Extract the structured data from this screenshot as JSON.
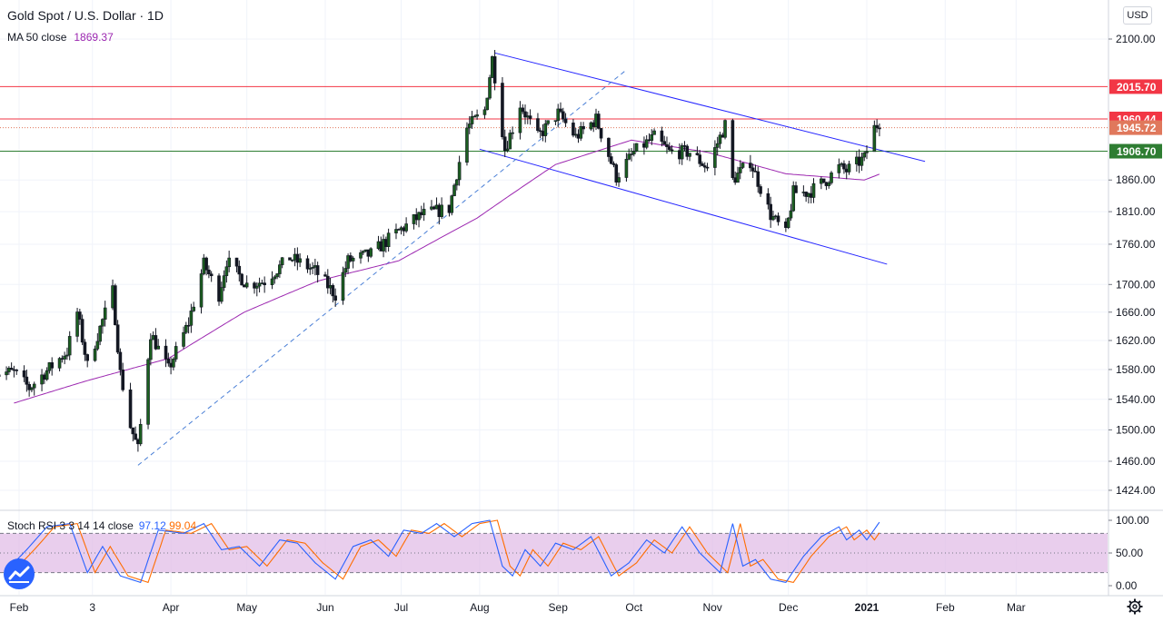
{
  "header": {
    "title": "Gold Spot / U.S. Dollar · 1D",
    "ma_label": "MA 50 close",
    "ma_value": "1869.37",
    "currency": "USD"
  },
  "oscillator": {
    "label": "Stoch RSI 3 3 14 14 close",
    "k_value": "97.12",
    "d_value": "99.04",
    "k_color": "#2962ff",
    "d_color": "#ff6d00",
    "band_color": "#e1bee7",
    "y_ticks": [
      "100.00",
      "50.00",
      "0.00"
    ],
    "upper": 80,
    "lower": 20
  },
  "chart_data": [
    {
      "type": "candlestick",
      "title": "Gold Spot / U.S. Dollar · 1D",
      "currency": "USD",
      "y_axis_scale": "log",
      "y_ticks": [
        "1424.00",
        "1460.00",
        "1500.00",
        "1540.00",
        "1580.00",
        "1620.00",
        "1660.00",
        "1700.00",
        "1760.00",
        "1810.00",
        "1860.00",
        "2100.00"
      ],
      "x_ticks": [
        "Feb",
        "3",
        "Apr",
        "May",
        "Jun",
        "Jul",
        "Aug",
        "Sep",
        "Oct",
        "Nov",
        "Dec",
        "2021",
        "Feb",
        "Mar"
      ],
      "anchors": [
        [
          "2020-01-30",
          1576
        ],
        [
          "2020-02-05",
          1555
        ],
        [
          "2020-02-20",
          1605
        ],
        [
          "2020-02-24",
          1660
        ],
        [
          "2020-02-28",
          1585
        ],
        [
          "2020-03-09",
          1690
        ],
        [
          "2020-03-12",
          1575
        ],
        [
          "2020-03-16",
          1505
        ],
        [
          "2020-03-19",
          1475
        ],
        [
          "2020-03-24",
          1630
        ],
        [
          "2020-03-31",
          1580
        ],
        [
          "2020-04-08",
          1645
        ],
        [
          "2020-04-14",
          1730
        ],
        [
          "2020-04-20",
          1685
        ],
        [
          "2020-04-23",
          1735
        ],
        [
          "2020-05-01",
          1700
        ],
        [
          "2020-05-08",
          1705
        ],
        [
          "2020-05-18",
          1740
        ],
        [
          "2020-05-28",
          1720
        ],
        [
          "2020-06-05",
          1685
        ],
        [
          "2020-06-10",
          1735
        ],
        [
          "2020-06-19",
          1745
        ],
        [
          "2020-06-30",
          1780
        ],
        [
          "2020-07-09",
          1805
        ],
        [
          "2020-07-20",
          1815
        ],
        [
          "2020-07-27",
          1945
        ],
        [
          "2020-08-03",
          1975
        ],
        [
          "2020-08-06",
          2065
        ],
        [
          "2020-08-11",
          1910
        ],
        [
          "2020-08-14",
          1945
        ],
        [
          "2020-08-17",
          1985
        ],
        [
          "2020-08-24",
          1930
        ],
        [
          "2020-09-01",
          1970
        ],
        [
          "2020-09-08",
          1930
        ],
        [
          "2020-09-16",
          1960
        ],
        [
          "2020-09-24",
          1865
        ],
        [
          "2020-10-01",
          1905
        ],
        [
          "2020-10-09",
          1930
        ],
        [
          "2020-10-15",
          1905
        ],
        [
          "2020-10-23",
          1905
        ],
        [
          "2020-10-30",
          1880
        ],
        [
          "2020-11-06",
          1950
        ],
        [
          "2020-11-09",
          1860
        ],
        [
          "2020-11-16",
          1890
        ],
        [
          "2020-11-24",
          1805
        ],
        [
          "2020-11-30",
          1775
        ],
        [
          "2020-12-03",
          1840
        ],
        [
          "2020-12-09",
          1840
        ],
        [
          "2020-12-16",
          1860
        ],
        [
          "2020-12-21",
          1880
        ],
        [
          "2020-12-24",
          1875
        ],
        [
          "2020-12-31",
          1895
        ],
        [
          "2021-01-04",
          1945
        ],
        [
          "2021-01-06",
          1955
        ]
      ],
      "moving_average": {
        "name": "MA 50 close",
        "last": 1869.37,
        "color": "#9c27b0",
        "points": [
          [
            "2020-01-30",
            1535
          ],
          [
            "2020-02-28",
            1565
          ],
          [
            "2020-03-31",
            1595
          ],
          [
            "2020-04-30",
            1660
          ],
          [
            "2020-05-29",
            1705
          ],
          [
            "2020-06-30",
            1735
          ],
          [
            "2020-07-31",
            1800
          ],
          [
            "2020-08-31",
            1885
          ],
          [
            "2020-09-30",
            1925
          ],
          [
            "2020-10-30",
            1905
          ],
          [
            "2020-11-30",
            1870
          ],
          [
            "2020-12-31",
            1860
          ],
          [
            "2021-01-06",
            1869.37
          ]
        ]
      },
      "horizontal_levels": [
        {
          "value": 2015.7,
          "label": "2015.70",
          "color": "#f23645",
          "style": "solid"
        },
        {
          "value": 1960.44,
          "label": "1960.44",
          "color": "#f23645",
          "style": "solid"
        },
        {
          "value": 1945.72,
          "label": "1945.72",
          "color": "#e0785c",
          "style": "dotted"
        },
        {
          "value": 1906.7,
          "label": "1906.70",
          "color": "#2e7d32",
          "style": "solid"
        }
      ],
      "trend_lines": [
        {
          "from": [
            "2020-08-07",
            2075
          ],
          "to": [
            "2021-01-24",
            1890
          ],
          "color": "#2424ff",
          "style": "solid"
        },
        {
          "from": [
            "2020-08-01",
            1910
          ],
          "to": [
            "2021-01-09",
            1730
          ],
          "color": "#2424ff",
          "style": "solid"
        },
        {
          "from": [
            "2020-03-19",
            1455
          ],
          "to": [
            "2020-09-28",
            2045
          ],
          "color": "#4a7fd6",
          "style": "dashed"
        }
      ],
      "colors": {
        "up": "#26a69a",
        "down": "#ef5350",
        "bar": "#131722",
        "up_fill": "#1b5e20",
        "down_fill": "#131722"
      }
    },
    {
      "type": "line",
      "title": "Stoch RSI 3 3 14 14 close",
      "ylim": [
        0,
        100
      ],
      "bands": [
        20,
        80
      ],
      "series": [
        {
          "name": "%K",
          "last": 97.12,
          "color": "#2962ff"
        },
        {
          "name": "%D",
          "last": 99.04,
          "color": "#ff6d00"
        }
      ],
      "k_anchors": [
        [
          "2020-01-30",
          35
        ],
        [
          "2020-02-04",
          55
        ],
        [
          "2020-02-12",
          90
        ],
        [
          "2020-02-21",
          95
        ],
        [
          "2020-02-28",
          20
        ],
        [
          "2020-03-05",
          60
        ],
        [
          "2020-03-12",
          15
        ],
        [
          "2020-03-20",
          5
        ],
        [
          "2020-03-27",
          85
        ],
        [
          "2020-04-06",
          80
        ],
        [
          "2020-04-14",
          95
        ],
        [
          "2020-04-21",
          55
        ],
        [
          "2020-04-28",
          60
        ],
        [
          "2020-05-06",
          30
        ],
        [
          "2020-05-14",
          70
        ],
        [
          "2020-05-21",
          65
        ],
        [
          "2020-05-28",
          35
        ],
        [
          "2020-06-05",
          10
        ],
        [
          "2020-06-12",
          60
        ],
        [
          "2020-06-19",
          70
        ],
        [
          "2020-06-26",
          45
        ],
        [
          "2020-07-02",
          85
        ],
        [
          "2020-07-09",
          80
        ],
        [
          "2020-07-15",
          95
        ],
        [
          "2020-07-22",
          75
        ],
        [
          "2020-07-29",
          95
        ],
        [
          "2020-08-05",
          100
        ],
        [
          "2020-08-10",
          30
        ],
        [
          "2020-08-14",
          15
        ],
        [
          "2020-08-19",
          55
        ],
        [
          "2020-08-25",
          30
        ],
        [
          "2020-08-31",
          65
        ],
        [
          "2020-09-07",
          55
        ],
        [
          "2020-09-14",
          75
        ],
        [
          "2020-09-22",
          15
        ],
        [
          "2020-09-29",
          35
        ],
        [
          "2020-10-06",
          70
        ],
        [
          "2020-10-13",
          50
        ],
        [
          "2020-10-20",
          90
        ],
        [
          "2020-10-27",
          50
        ],
        [
          "2020-11-04",
          20
        ],
        [
          "2020-11-09",
          95
        ],
        [
          "2020-11-13",
          30
        ],
        [
          "2020-11-18",
          40
        ],
        [
          "2020-11-24",
          10
        ],
        [
          "2020-11-30",
          5
        ],
        [
          "2020-12-07",
          45
        ],
        [
          "2020-12-14",
          75
        ],
        [
          "2020-12-21",
          90
        ],
        [
          "2020-12-24",
          70
        ],
        [
          "2020-12-29",
          85
        ],
        [
          "2021-01-01",
          70
        ],
        [
          "2021-01-06",
          97.12
        ]
      ]
    }
  ]
}
